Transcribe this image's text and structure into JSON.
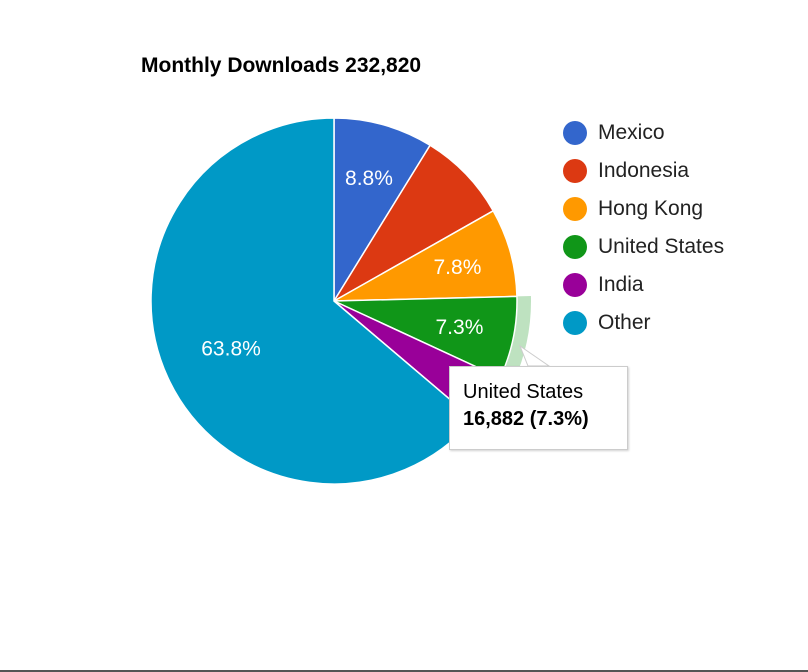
{
  "chart_data": {
    "type": "pie",
    "title": "Monthly Downloads 232,820",
    "total": 232820,
    "slices": [
      {
        "label": "Mexico",
        "percent": 8.8,
        "percent_label": "8.8%",
        "color": "#3366cc"
      },
      {
        "label": "Indonesia",
        "percent": 8.0,
        "percent_label": "",
        "color": "#dc3912"
      },
      {
        "label": "Hong Kong",
        "percent": 7.8,
        "percent_label": "7.8%",
        "color": "#ff9900"
      },
      {
        "label": "United States",
        "percent": 7.3,
        "percent_label": "7.3%",
        "color": "#109618"
      },
      {
        "label": "India",
        "percent": 4.3,
        "percent_label": "",
        "color": "#990099"
      },
      {
        "label": "Other",
        "percent": 63.8,
        "percent_label": "63.8%",
        "color": "#0099c6"
      }
    ],
    "legend": [
      "Mexico",
      "Indonesia",
      "Hong Kong",
      "United States",
      "India",
      "Other"
    ],
    "legend_position": "right",
    "highlighted_slice": "United States",
    "tooltip": {
      "title": "United States",
      "value_text": "16,882 (7.3%)",
      "value": 16882,
      "percent": 7.3
    }
  }
}
